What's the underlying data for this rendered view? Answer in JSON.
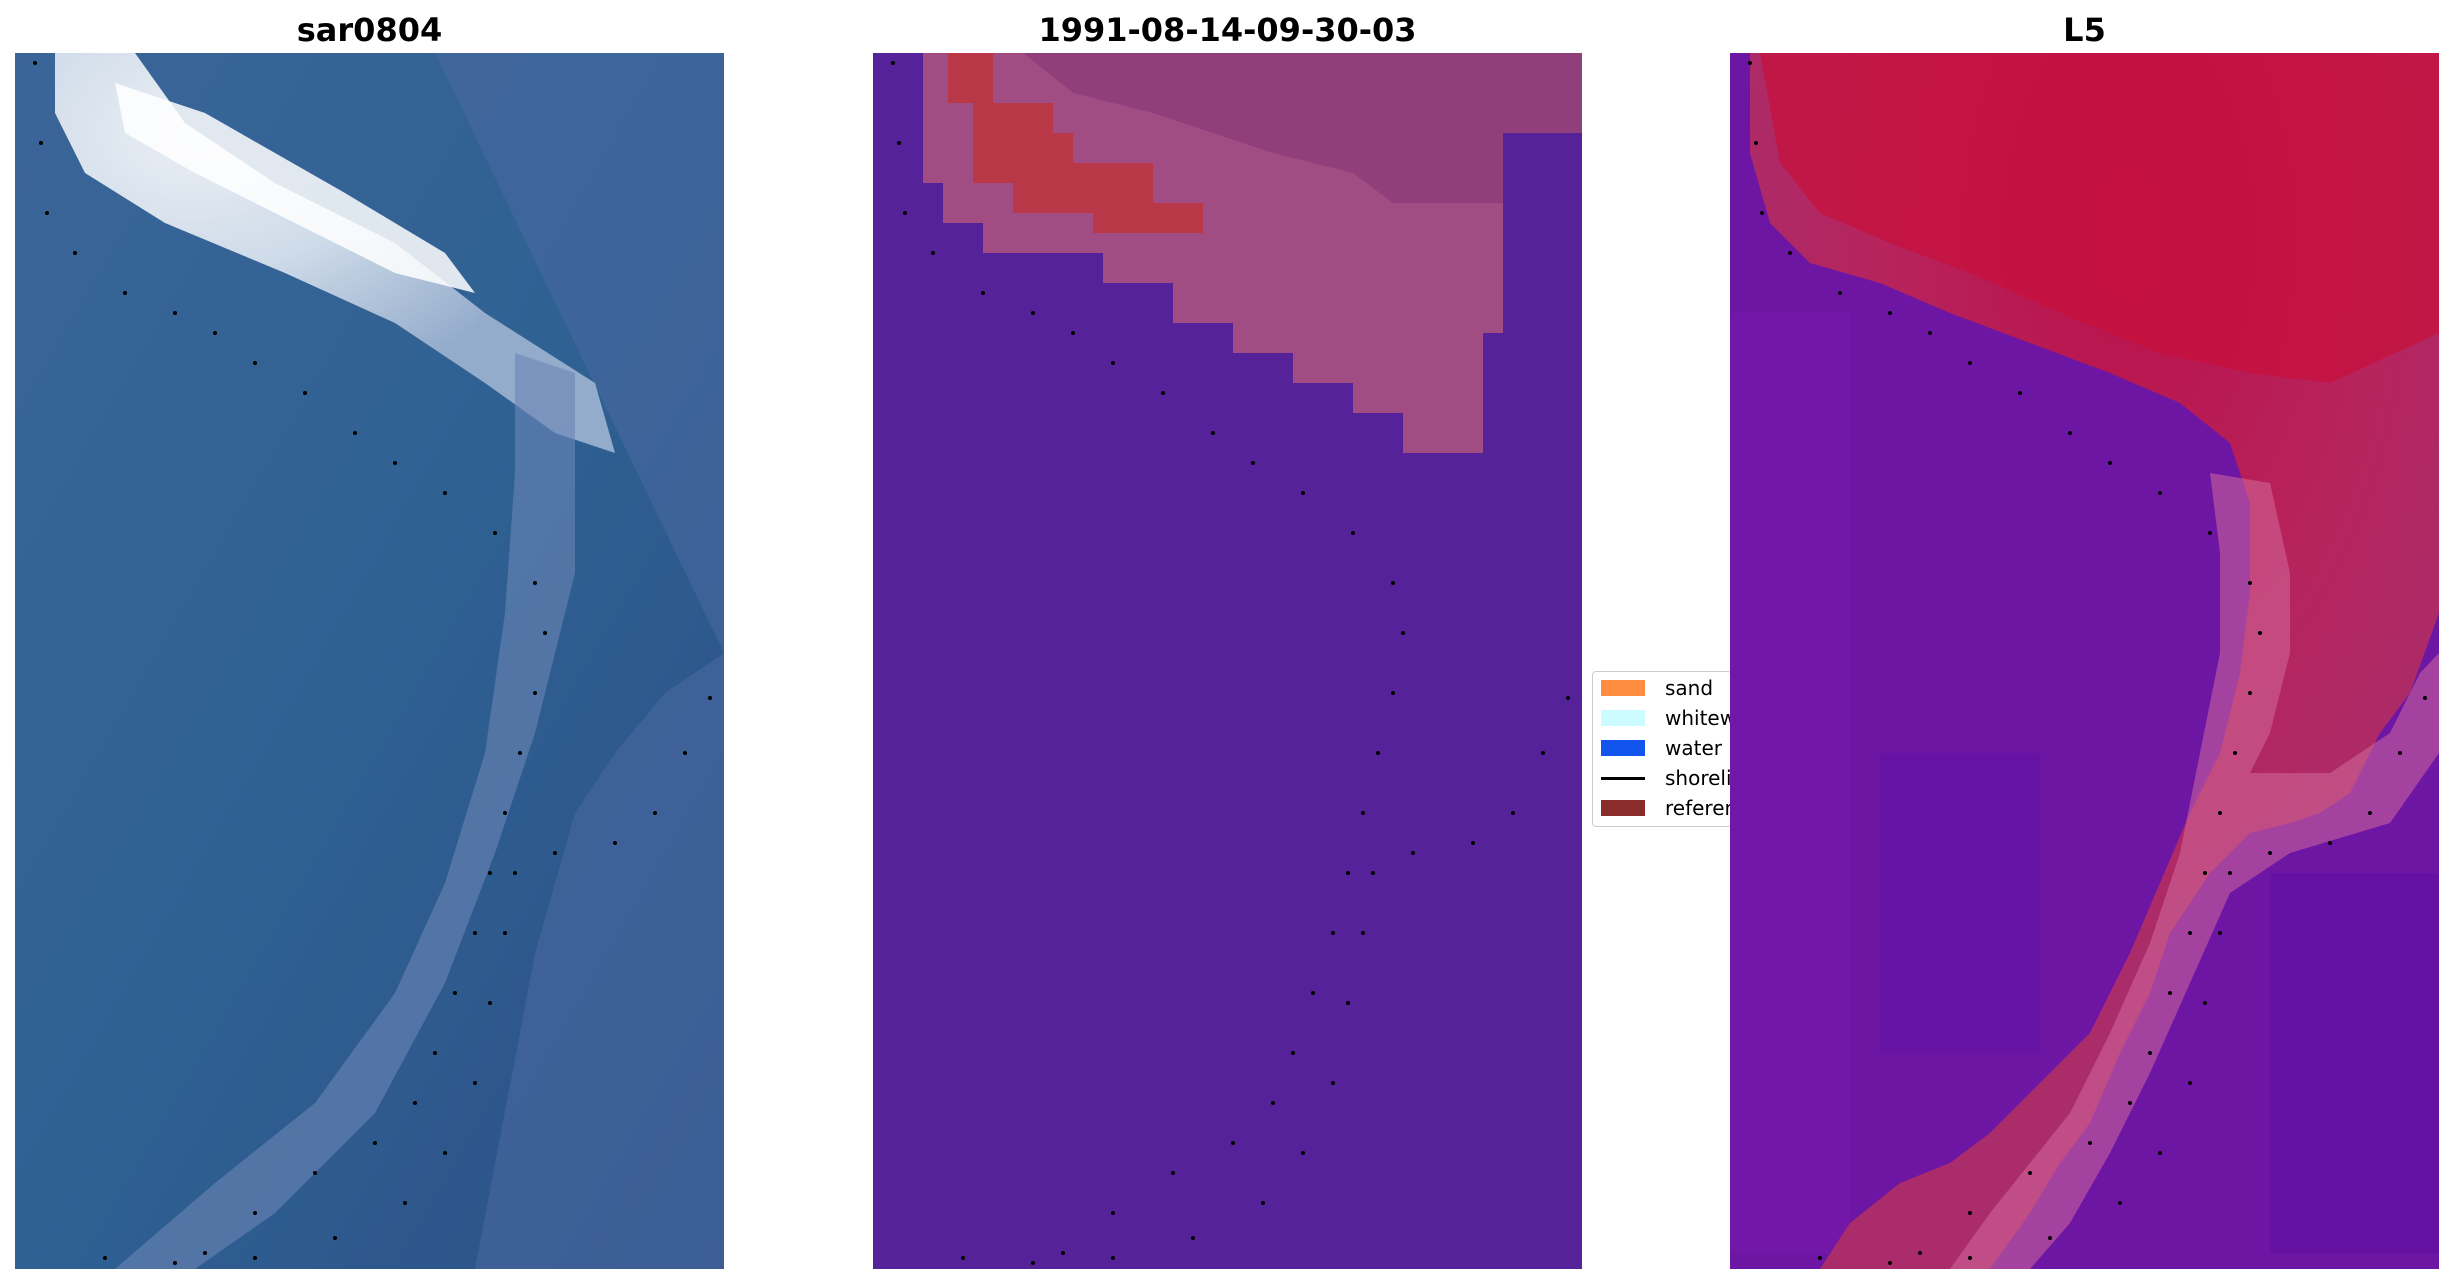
{
  "panels": [
    {
      "title": "sar0804"
    },
    {
      "title": "1991-08-14-09-30-03"
    },
    {
      "title": "L5"
    }
  ],
  "legend": {
    "items": [
      {
        "label": "sand",
        "color": "#ff8c40",
        "kind": "patch"
      },
      {
        "label": "whitew",
        "color": "#ccfcff",
        "kind": "patch"
      },
      {
        "label": "water",
        "color": "#1155ee",
        "kind": "patch"
      },
      {
        "label": "shoreli",
        "color": "#000000",
        "kind": "line"
      },
      {
        "label": "referen",
        "color": "#8b2c2c",
        "kind": "patch"
      }
    ]
  },
  "colors": {
    "sar_water": "#2c5b8e",
    "sar_whitewater": "#f2f6fa",
    "class_water": "#55229a",
    "class_sand": "#b83848",
    "class_sand_mix": "#a24c84",
    "l5_water": "#6a14a6",
    "l5_sand": "#c4103e",
    "shoreline": "#000000"
  }
}
